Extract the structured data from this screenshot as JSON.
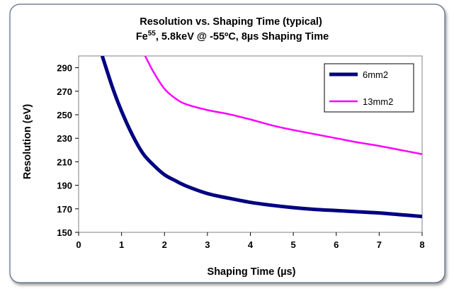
{
  "chart_data": {
    "type": "line",
    "title_line1": "Resolution vs. Shaping Time (typical)",
    "title_line2_prefix": "Fe",
    "title_line2_sup": "55",
    "title_line2_suffix": ", 5.8keV @ -55ºC, 8µs Shaping Time",
    "xlabel": "Shaping Time (µs)",
    "ylabel": "Resolution (eV)",
    "xlim": [
      0,
      8
    ],
    "ylim": [
      150,
      300
    ],
    "x_ticks": [
      "0",
      "1",
      "2",
      "3",
      "4",
      "5",
      "6",
      "7",
      "8"
    ],
    "y_ticks": [
      "150",
      "170",
      "190",
      "210",
      "230",
      "250",
      "270",
      "290"
    ],
    "grid": false,
    "legend_position": "top-right",
    "series": [
      {
        "name": "6mm2",
        "color": "#000080",
        "points": [
          [
            0.55,
            300
          ],
          [
            0.8,
            272
          ],
          [
            1.0,
            253
          ],
          [
            1.25,
            233
          ],
          [
            1.5,
            217
          ],
          [
            1.75,
            207
          ],
          [
            2.0,
            199
          ],
          [
            2.25,
            194
          ],
          [
            2.5,
            189.5
          ],
          [
            3.0,
            183
          ],
          [
            3.5,
            179
          ],
          [
            4.0,
            175.5
          ],
          [
            4.5,
            173
          ],
          [
            5.0,
            171
          ],
          [
            5.5,
            169.5
          ],
          [
            6.0,
            168.5
          ],
          [
            6.5,
            167.5
          ],
          [
            7.0,
            166.5
          ],
          [
            7.5,
            165
          ],
          [
            8.0,
            163.5
          ]
        ]
      },
      {
        "name": "13mm2",
        "color": "#ff00ff",
        "points": [
          [
            1.55,
            300
          ],
          [
            1.75,
            286
          ],
          [
            2.0,
            272
          ],
          [
            2.25,
            264
          ],
          [
            2.5,
            259
          ],
          [
            3.0,
            254
          ],
          [
            3.5,
            250.5
          ],
          [
            4.0,
            246
          ],
          [
            4.5,
            241
          ],
          [
            5.0,
            237
          ],
          [
            5.5,
            233.5
          ],
          [
            6.0,
            230
          ],
          [
            6.5,
            226.5
          ],
          [
            7.0,
            223.5
          ],
          [
            7.5,
            220
          ],
          [
            8.0,
            216.5
          ]
        ]
      }
    ]
  }
}
